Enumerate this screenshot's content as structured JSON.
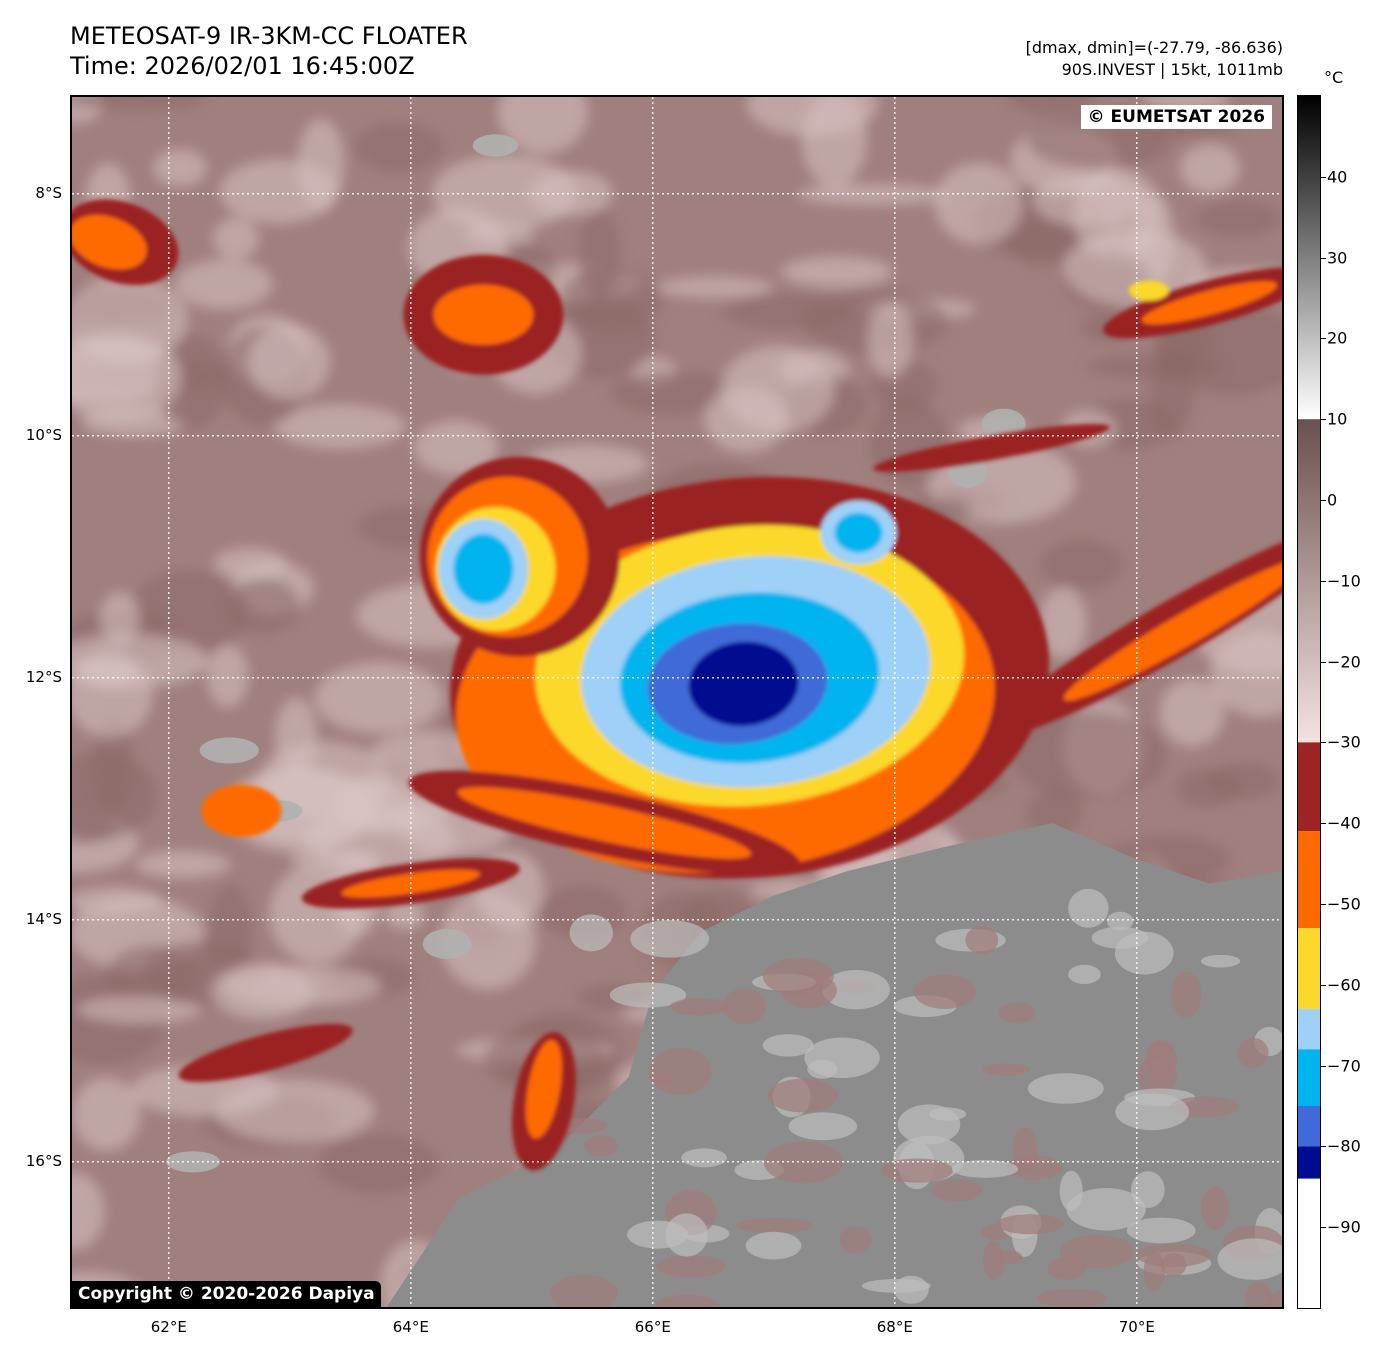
{
  "header": {
    "title_line1": "METEOSAT-9 IR-3KM-CC FLOATER",
    "title_line2": "Time: 2026/02/01 16:45:00Z",
    "info_line1": "[dmax, dmin]=(-27.79, -86.636)",
    "info_line2": "90S.INVEST | 15kt, 1011mb"
  },
  "map": {
    "watermark_eumetsat": "© EUMETSAT 2026",
    "watermark_copyright": "Copyright © 2020-2026 Dapiya",
    "lat_labels": [
      "8°S",
      "10°S",
      "12°S",
      "14°S",
      "16°S"
    ],
    "lon_labels": [
      "62°E",
      "64°E",
      "66°E",
      "68°E",
      "70°E"
    ],
    "lat_values": [
      -8,
      -10,
      -12,
      -14,
      -16
    ],
    "lon_values": [
      62,
      64,
      66,
      68,
      70
    ],
    "extent": {
      "lon_min": 61.2,
      "lon_max": 71.2,
      "lat_min": -17.2,
      "lat_max": -7.2
    },
    "cloud_top_colors": {
      "warm_surface": "#a0807e",
      "clear_warm": "#d9c2c2",
      "band_minus30_40": "#9b2424",
      "band_minus40_50": "#ff6a00",
      "band_minus50_60": "#fcd82c",
      "band_minus60_70": "#9fd0f7",
      "band_minus70_80": "#00b4ef",
      "band_minus80_85": "#3f6ad8",
      "band_coldest": "#000c90",
      "gray_low_cloud": "#8c8c8c"
    },
    "storm_center": {
      "lon": 66.8,
      "lat": -12.0
    }
  },
  "colorbar": {
    "unit": "°C",
    "ticks": [
      "40",
      "30",
      "20",
      "10",
      "0",
      "−10",
      "−20",
      "−30",
      "−40",
      "−50",
      "−60",
      "−70",
      "−80",
      "−90"
    ],
    "tick_values": [
      40,
      30,
      20,
      10,
      0,
      -10,
      -20,
      -30,
      -40,
      -50,
      -60,
      -70,
      -80,
      -90
    ],
    "range": [
      -100,
      50
    ],
    "segments": [
      {
        "from": 50,
        "to": 10,
        "kind": "gray_ramp",
        "top": "#000000",
        "bottom": "#ffffff"
      },
      {
        "from": 10,
        "to": -30,
        "kind": "brown_ramp",
        "top": "#6a5050",
        "bottom": "#f4e2e2"
      },
      {
        "from": -30,
        "to": -41,
        "color": "#9b2424"
      },
      {
        "from": -41,
        "to": -53,
        "color": "#ff6a00"
      },
      {
        "from": -53,
        "to": -63,
        "color": "#fcd82c"
      },
      {
        "from": -63,
        "to": -68,
        "color": "#9fd0f7"
      },
      {
        "from": -68,
        "to": -75,
        "color": "#00b4ef"
      },
      {
        "from": -75,
        "to": -80,
        "color": "#3f6ad8"
      },
      {
        "from": -80,
        "to": -84,
        "color": "#000c90"
      },
      {
        "from": -84,
        "to": -100,
        "color": "#ffffff"
      }
    ]
  }
}
